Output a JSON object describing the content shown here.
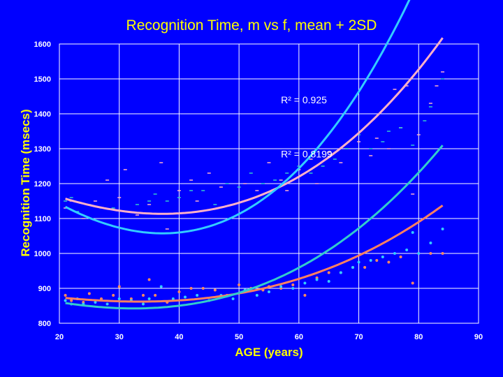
{
  "chart_data": {
    "type": "scatter",
    "title": "Recognition Time, m vs f, mean + 2SD",
    "xlabel": "AGE (years)",
    "ylabel": "Recognition Time (msecs)",
    "xlim": [
      20,
      90
    ],
    "ylim": [
      800,
      1600
    ],
    "x_ticks": [
      "20",
      "30",
      "40",
      "50",
      "60",
      "70",
      "80",
      "90"
    ],
    "y_ticks": [
      "800",
      "900",
      "1000",
      "1100",
      "1200",
      "1300",
      "1400",
      "1500",
      "1600"
    ],
    "grid": true,
    "annotations": [
      {
        "text": "R² = 0.925",
        "x": 57,
        "y": 1430
      },
      {
        "text": "R² = 0.8199",
        "x": 57,
        "y": 1275
      }
    ],
    "series": [
      {
        "color": "#ffb0c8",
        "marker": "dash",
        "points": [
          [
            21,
            1130
          ],
          [
            22,
            1150
          ],
          [
            24,
            1100
          ],
          [
            26,
            1150
          ],
          [
            28,
            1210
          ],
          [
            30,
            1160
          ],
          [
            31,
            1240
          ],
          [
            33,
            1110
          ],
          [
            35,
            1140
          ],
          [
            37,
            1260
          ],
          [
            38,
            1070
          ],
          [
            40,
            1180
          ],
          [
            42,
            1210
          ],
          [
            43,
            1150
          ],
          [
            45,
            1230
          ],
          [
            47,
            1190
          ],
          [
            49,
            1140
          ],
          [
            51,
            1200
          ],
          [
            53,
            1180
          ],
          [
            55,
            1260
          ],
          [
            57,
            1210
          ],
          [
            58,
            1180
          ],
          [
            60,
            1240
          ],
          [
            62,
            1270
          ],
          [
            63,
            1200
          ],
          [
            65,
            1290
          ],
          [
            67,
            1260
          ],
          [
            68,
            1300
          ],
          [
            70,
            1320
          ],
          [
            72,
            1280
          ],
          [
            73,
            1330
          ],
          [
            75,
            1300
          ],
          [
            76,
            1470
          ],
          [
            77,
            1360
          ],
          [
            78,
            1480
          ],
          [
            79,
            1170
          ],
          [
            80,
            1340
          ],
          [
            82,
            1430
          ],
          [
            83,
            1480
          ],
          [
            84,
            1520
          ]
        ]
      },
      {
        "color": "#33cccc",
        "marker": "dash",
        "points": [
          [
            21,
            1150
          ],
          [
            22,
            1160
          ],
          [
            23,
            1120
          ],
          [
            25,
            1140
          ],
          [
            27,
            1130
          ],
          [
            29,
            1130
          ],
          [
            31,
            1120
          ],
          [
            33,
            1140
          ],
          [
            35,
            1150
          ],
          [
            36,
            1170
          ],
          [
            38,
            1150
          ],
          [
            40,
            1160
          ],
          [
            42,
            1180
          ],
          [
            44,
            1180
          ],
          [
            46,
            1140
          ],
          [
            48,
            1200
          ],
          [
            50,
            1190
          ],
          [
            52,
            1230
          ],
          [
            54,
            1200
          ],
          [
            56,
            1210
          ],
          [
            58,
            1230
          ],
          [
            60,
            1250
          ],
          [
            62,
            1230
          ],
          [
            64,
            1250
          ],
          [
            66,
            1270
          ],
          [
            68,
            1300
          ],
          [
            70,
            1340
          ],
          [
            72,
            1300
          ],
          [
            74,
            1320
          ],
          [
            75,
            1350
          ],
          [
            77,
            1360
          ],
          [
            79,
            1310
          ],
          [
            81,
            1380
          ],
          [
            82,
            1420
          ],
          [
            84,
            1500
          ]
        ]
      },
      {
        "color": "#ff8860",
        "marker": "dot",
        "points": [
          [
            21,
            880
          ],
          [
            22,
            865
          ],
          [
            24,
            860
          ],
          [
            25,
            885
          ],
          [
            27,
            870
          ],
          [
            29,
            880
          ],
          [
            30,
            905
          ],
          [
            32,
            870
          ],
          [
            34,
            880
          ],
          [
            35,
            925
          ],
          [
            36,
            880
          ],
          [
            38,
            860
          ],
          [
            40,
            890
          ],
          [
            42,
            900
          ],
          [
            44,
            900
          ],
          [
            46,
            895
          ],
          [
            48,
            880
          ],
          [
            50,
            910
          ],
          [
            52,
            900
          ],
          [
            54,
            895
          ],
          [
            55,
            905
          ],
          [
            57,
            900
          ],
          [
            59,
            910
          ],
          [
            61,
            880
          ],
          [
            63,
            930
          ],
          [
            65,
            945
          ],
          [
            67,
            945
          ],
          [
            69,
            960
          ],
          [
            71,
            960
          ],
          [
            73,
            980
          ],
          [
            75,
            975
          ],
          [
            77,
            990
          ],
          [
            79,
            915
          ],
          [
            80,
            1000
          ],
          [
            82,
            1000
          ],
          [
            84,
            1000
          ]
        ]
      },
      {
        "color": "#33ccff",
        "marker": "dot",
        "points": [
          [
            21,
            865
          ],
          [
            22,
            855
          ],
          [
            23,
            870
          ],
          [
            24,
            855
          ],
          [
            26,
            860
          ],
          [
            28,
            855
          ],
          [
            30,
            870
          ],
          [
            32,
            865
          ],
          [
            34,
            855
          ],
          [
            35,
            870
          ],
          [
            37,
            905
          ],
          [
            39,
            870
          ],
          [
            41,
            875
          ],
          [
            43,
            880
          ],
          [
            45,
            865
          ],
          [
            47,
            880
          ],
          [
            49,
            870
          ],
          [
            51,
            895
          ],
          [
            53,
            880
          ],
          [
            55,
            890
          ],
          [
            57,
            905
          ],
          [
            59,
            900
          ],
          [
            61,
            915
          ],
          [
            63,
            925
          ],
          [
            65,
            920
          ],
          [
            67,
            945
          ],
          [
            69,
            960
          ],
          [
            70,
            975
          ],
          [
            72,
            980
          ],
          [
            74,
            990
          ],
          [
            76,
            1000
          ],
          [
            78,
            1010
          ],
          [
            79,
            1060
          ],
          [
            80,
            1000
          ],
          [
            82,
            1030
          ],
          [
            84,
            1070
          ]
        ]
      }
    ],
    "trendlines": [
      {
        "color": "#ffb0c8",
        "coeffs": [
          1161.95,
          -5.32,
          0.1273,
          0.001047
        ]
      },
      {
        "color": "#33ccff",
        "coeffs": [
          1142.69,
          -9.31,
          0.2216,
          0.001858
        ]
      },
      {
        "color": "#ff8060",
        "coeffs": [
          874.08,
          -1.68,
          0.0496,
          0.00064
        ]
      },
      {
        "color": "#33cccc",
        "coeffs": [
          860.49,
          -2.75,
          0.0934,
          0.000925
        ]
      }
    ]
  }
}
